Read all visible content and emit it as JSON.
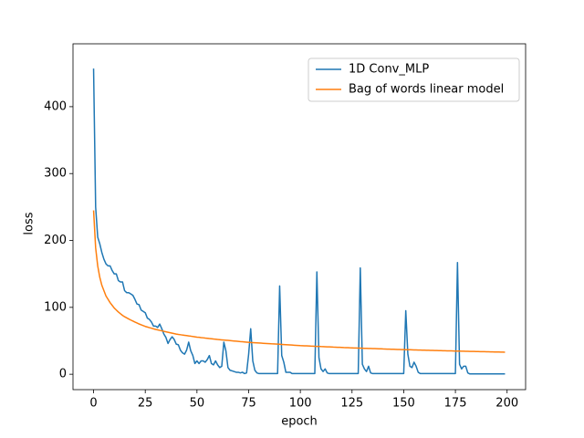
{
  "chart_data": {
    "type": "line",
    "xlabel": "epoch",
    "ylabel": "loss",
    "x": [
      0,
      1,
      2,
      3,
      4,
      5,
      6,
      7,
      8,
      9,
      10,
      11,
      12,
      13,
      14,
      15,
      16,
      17,
      18,
      19,
      20,
      21,
      22,
      23,
      24,
      25,
      26,
      27,
      28,
      29,
      30,
      31,
      32,
      33,
      34,
      35,
      36,
      37,
      38,
      39,
      40,
      41,
      42,
      43,
      44,
      45,
      46,
      47,
      48,
      49,
      50,
      51,
      52,
      53,
      54,
      55,
      56,
      57,
      58,
      59,
      60,
      61,
      62,
      63,
      64,
      65,
      66,
      67,
      68,
      69,
      70,
      71,
      72,
      73,
      74,
      75,
      76,
      77,
      78,
      79,
      80,
      81,
      82,
      83,
      84,
      85,
      86,
      87,
      88,
      89,
      90,
      91,
      92,
      93,
      94,
      95,
      96,
      97,
      98,
      99,
      100,
      101,
      102,
      103,
      104,
      105,
      106,
      107,
      108,
      109,
      110,
      111,
      112,
      113,
      114,
      115,
      116,
      117,
      118,
      119,
      120,
      121,
      122,
      123,
      124,
      125,
      126,
      127,
      128,
      129,
      130,
      131,
      132,
      133,
      134,
      135,
      136,
      137,
      138,
      139,
      140,
      141,
      142,
      143,
      144,
      145,
      146,
      147,
      148,
      149,
      150,
      151,
      152,
      153,
      154,
      155,
      156,
      157,
      158,
      159,
      160,
      161,
      162,
      163,
      164,
      165,
      166,
      167,
      168,
      169,
      170,
      171,
      172,
      173,
      174,
      175,
      176,
      177,
      178,
      179,
      180,
      181,
      182,
      183,
      184,
      185,
      186,
      187,
      188,
      189,
      190,
      191,
      192,
      193,
      194,
      195,
      196,
      197,
      198,
      199
    ],
    "series": [
      {
        "name": "1D Conv_MLP",
        "color": "#1f77b4",
        "values": [
          457,
          250,
          205,
          195,
          182,
          172,
          165,
          162,
          162,
          155,
          150,
          150,
          140,
          138,
          138,
          125,
          122,
          122,
          120,
          118,
          112,
          105,
          104,
          96,
          94,
          92,
          84,
          82,
          78,
          72,
          72,
          70,
          75,
          68,
          60,
          55,
          46,
          52,
          56,
          52,
          45,
          44,
          36,
          32,
          30,
          36,
          48,
          35,
          28,
          16,
          20,
          16,
          20,
          20,
          18,
          22,
          28,
          16,
          14,
          20,
          14,
          10,
          12,
          48,
          35,
          10,
          6,
          5,
          4,
          3,
          3,
          2,
          3,
          1,
          2,
          30,
          68,
          20,
          6,
          2,
          1,
          1,
          1,
          1,
          1,
          1,
          1,
          1,
          1,
          1,
          132,
          28,
          18,
          3,
          3,
          3,
          1,
          1,
          1,
          1,
          1,
          1,
          1,
          1,
          1,
          1,
          1,
          1,
          153,
          25,
          8,
          4,
          8,
          2,
          1,
          1,
          1,
          1,
          1,
          1,
          1,
          1,
          1,
          1,
          1,
          1,
          1,
          1,
          1,
          159,
          15,
          8,
          4,
          12,
          2,
          1,
          1,
          1,
          1,
          1,
          1,
          1,
          1,
          1,
          1,
          1,
          1,
          1,
          1,
          1,
          1,
          95,
          30,
          12,
          10,
          18,
          12,
          3,
          1,
          1,
          1,
          1,
          1,
          1,
          1,
          1,
          1,
          1,
          1,
          1,
          1,
          1,
          1,
          1,
          1,
          1,
          167,
          15,
          8,
          12,
          12,
          2,
          0.5,
          0.5,
          0.5,
          0.5,
          0.5,
          0.5,
          0.5,
          0.5,
          0.5,
          0.5,
          0.5,
          0.5,
          0.5,
          0.5,
          0.5,
          0.5,
          0.5,
          0.5
        ]
      },
      {
        "name": "Bag of words linear model",
        "color": "#ff7f0e",
        "values": [
          245,
          189,
          162,
          145,
          133,
          125,
          117,
          112,
          107,
          103,
          99,
          96,
          93,
          90.5,
          88,
          86,
          84.3,
          82.6,
          81,
          79.5,
          78,
          76.6,
          75.2,
          74,
          72.7,
          71.5,
          70.6,
          69.7,
          68.8,
          67.9,
          67,
          66.3,
          65.6,
          64.9,
          64.2,
          63.5,
          62.8,
          62.1,
          61.4,
          60.7,
          60,
          59.5,
          59.1,
          58.6,
          58.2,
          57.8,
          57.3,
          56.9,
          56.4,
          56,
          55.5,
          55.2,
          54.8,
          54.5,
          54.1,
          53.8,
          53.4,
          53.1,
          52.7,
          52.4,
          52,
          51.7,
          51.4,
          51.1,
          50.9,
          50.6,
          50.3,
          50,
          49.7,
          49.4,
          49.1,
          48.8,
          48.6,
          48.3,
          48,
          47.7,
          47.5,
          47.3,
          47.1,
          46.9,
          46.7,
          46.5,
          46.3,
          46.1,
          45.9,
          45.7,
          45.5,
          45.4,
          45.2,
          45,
          44.8,
          44.6,
          44.4,
          44.2,
          44,
          43.8,
          43.6,
          43.4,
          43.2,
          43,
          42.8,
          42.7,
          42.5,
          42.4,
          42.3,
          42.1,
          42,
          41.8,
          41.7,
          41.6,
          41.4,
          41.3,
          41.2,
          41,
          40.9,
          40.8,
          40.6,
          40.5,
          40.3,
          40.2,
          40.1,
          39.9,
          39.8,
          39.7,
          39.5,
          39.4,
          39.3,
          39.2,
          39.1,
          39,
          38.9,
          38.8,
          38.7,
          38.6,
          38.5,
          38.4,
          38.3,
          38.2,
          38.1,
          38,
          37.8,
          37.7,
          37.6,
          37.5,
          37.4,
          37.3,
          37.2,
          37.1,
          37,
          36.9,
          36.8,
          36.7,
          36.6,
          36.6,
          36.5,
          36.4,
          36.3,
          36.2,
          36.1,
          36,
          36,
          35.9,
          35.8,
          35.7,
          35.6,
          35.5,
          35.5,
          35.4,
          35.3,
          35.2,
          35.1,
          35,
          35,
          34.9,
          34.8,
          34.7,
          34.6,
          34.6,
          34.5,
          34.4,
          34.3,
          34.3,
          34.2,
          34.1,
          34.1,
          34,
          33.9,
          33.8,
          33.8,
          33.7,
          33.6,
          33.6,
          33.5,
          33.4,
          33.3,
          33.3,
          33.2,
          33.1,
          33.1,
          33
        ]
      }
    ],
    "xlim": [
      -9.95,
      208.95
    ],
    "xticks": [
      0,
      25,
      50,
      75,
      100,
      125,
      150,
      175,
      200
    ],
    "ylim": [
      -23,
      494
    ],
    "yticks": [
      0,
      100,
      200,
      300,
      400
    ],
    "legend": "upper right"
  }
}
